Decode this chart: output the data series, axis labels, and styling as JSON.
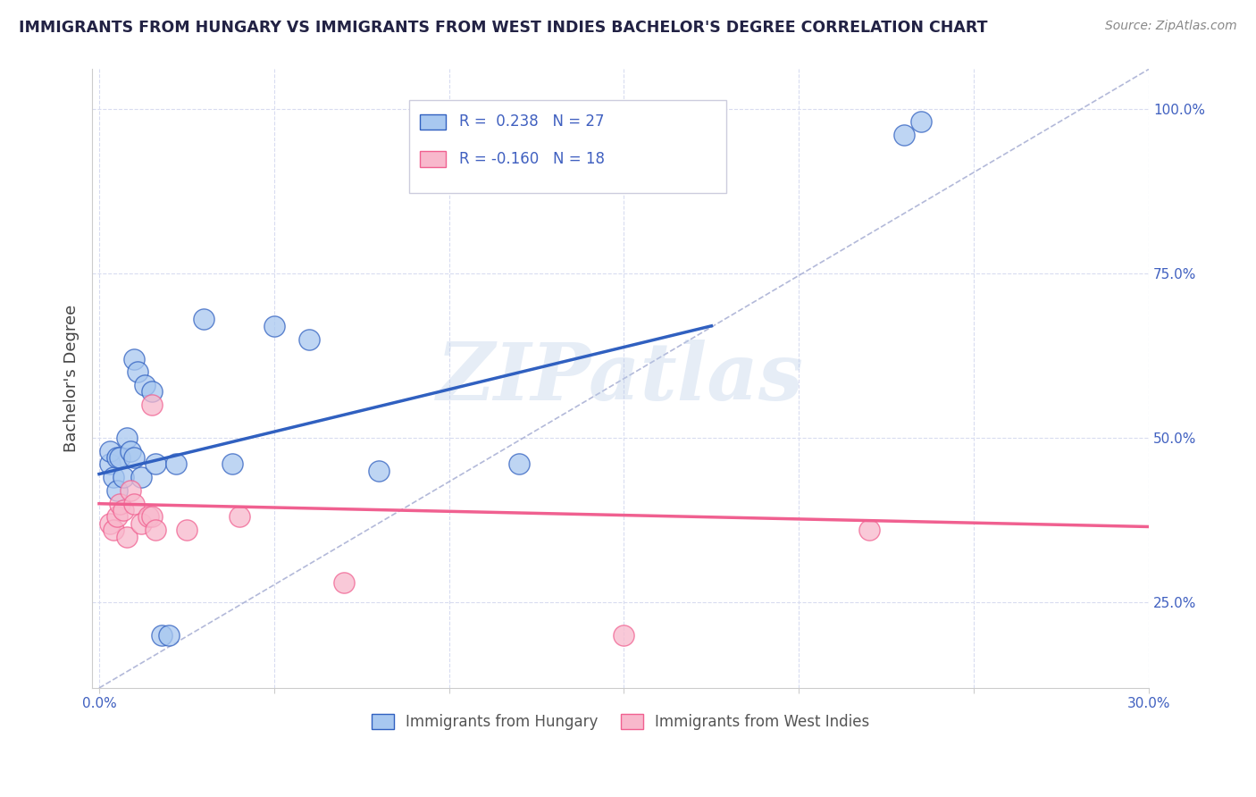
{
  "title": "IMMIGRANTS FROM HUNGARY VS IMMIGRANTS FROM WEST INDIES BACHELOR'S DEGREE CORRELATION CHART",
  "source": "Source: ZipAtlas.com",
  "xlabel_blue": "Immigrants from Hungary",
  "xlabel_pink": "Immigrants from West Indies",
  "ylabel": "Bachelor's Degree",
  "xlim": [
    -0.002,
    0.3
  ],
  "ylim": [
    0.12,
    1.06
  ],
  "xticks": [
    0.0,
    0.05,
    0.1,
    0.15,
    0.2,
    0.25,
    0.3
  ],
  "yticks_right": [
    0.25,
    0.5,
    0.75,
    1.0
  ],
  "ytick_labels_right": [
    "25.0%",
    "50.0%",
    "75.0%",
    "100.0%"
  ],
  "xtick_labels": [
    "0.0%",
    "",
    "",
    "",
    "",
    "",
    "30.0%"
  ],
  "r_blue": 0.238,
  "n_blue": 27,
  "r_pink": -0.16,
  "n_pink": 18,
  "color_blue": "#A8C8F0",
  "color_blue_line": "#3060C0",
  "color_pink": "#F8B8CC",
  "color_pink_line": "#F06090",
  "color_dashed": "#A0A8D0",
  "watermark_text": "ZIPatlas",
  "blue_scatter_x": [
    0.003,
    0.003,
    0.004,
    0.005,
    0.005,
    0.006,
    0.007,
    0.008,
    0.009,
    0.01,
    0.01,
    0.011,
    0.012,
    0.013,
    0.015,
    0.016,
    0.018,
    0.02,
    0.022,
    0.03,
    0.038,
    0.05,
    0.06,
    0.08,
    0.12,
    0.23,
    0.235
  ],
  "blue_scatter_y": [
    0.46,
    0.48,
    0.44,
    0.42,
    0.47,
    0.47,
    0.44,
    0.5,
    0.48,
    0.47,
    0.62,
    0.6,
    0.44,
    0.58,
    0.57,
    0.46,
    0.2,
    0.2,
    0.46,
    0.68,
    0.46,
    0.67,
    0.65,
    0.45,
    0.46,
    0.96,
    0.98
  ],
  "pink_scatter_x": [
    0.003,
    0.004,
    0.005,
    0.006,
    0.007,
    0.008,
    0.009,
    0.01,
    0.012,
    0.014,
    0.015,
    0.015,
    0.016,
    0.025,
    0.04,
    0.07,
    0.15,
    0.22
  ],
  "pink_scatter_y": [
    0.37,
    0.36,
    0.38,
    0.4,
    0.39,
    0.35,
    0.42,
    0.4,
    0.37,
    0.38,
    0.38,
    0.55,
    0.36,
    0.36,
    0.38,
    0.28,
    0.2,
    0.36
  ],
  "blue_line_x": [
    0.0,
    0.175
  ],
  "blue_line_y": [
    0.445,
    0.67
  ],
  "pink_line_x": [
    0.0,
    0.3
  ],
  "pink_line_y": [
    0.4,
    0.365
  ],
  "dashed_line_x": [
    0.0,
    0.3
  ],
  "dashed_line_y": [
    0.12,
    1.06
  ],
  "background_color": "#FFFFFF",
  "grid_color": "#D8DCF0",
  "title_color": "#222244",
  "axis_label_color": "#4060C0",
  "source_color": "#888888",
  "ylabel_color": "#444444"
}
